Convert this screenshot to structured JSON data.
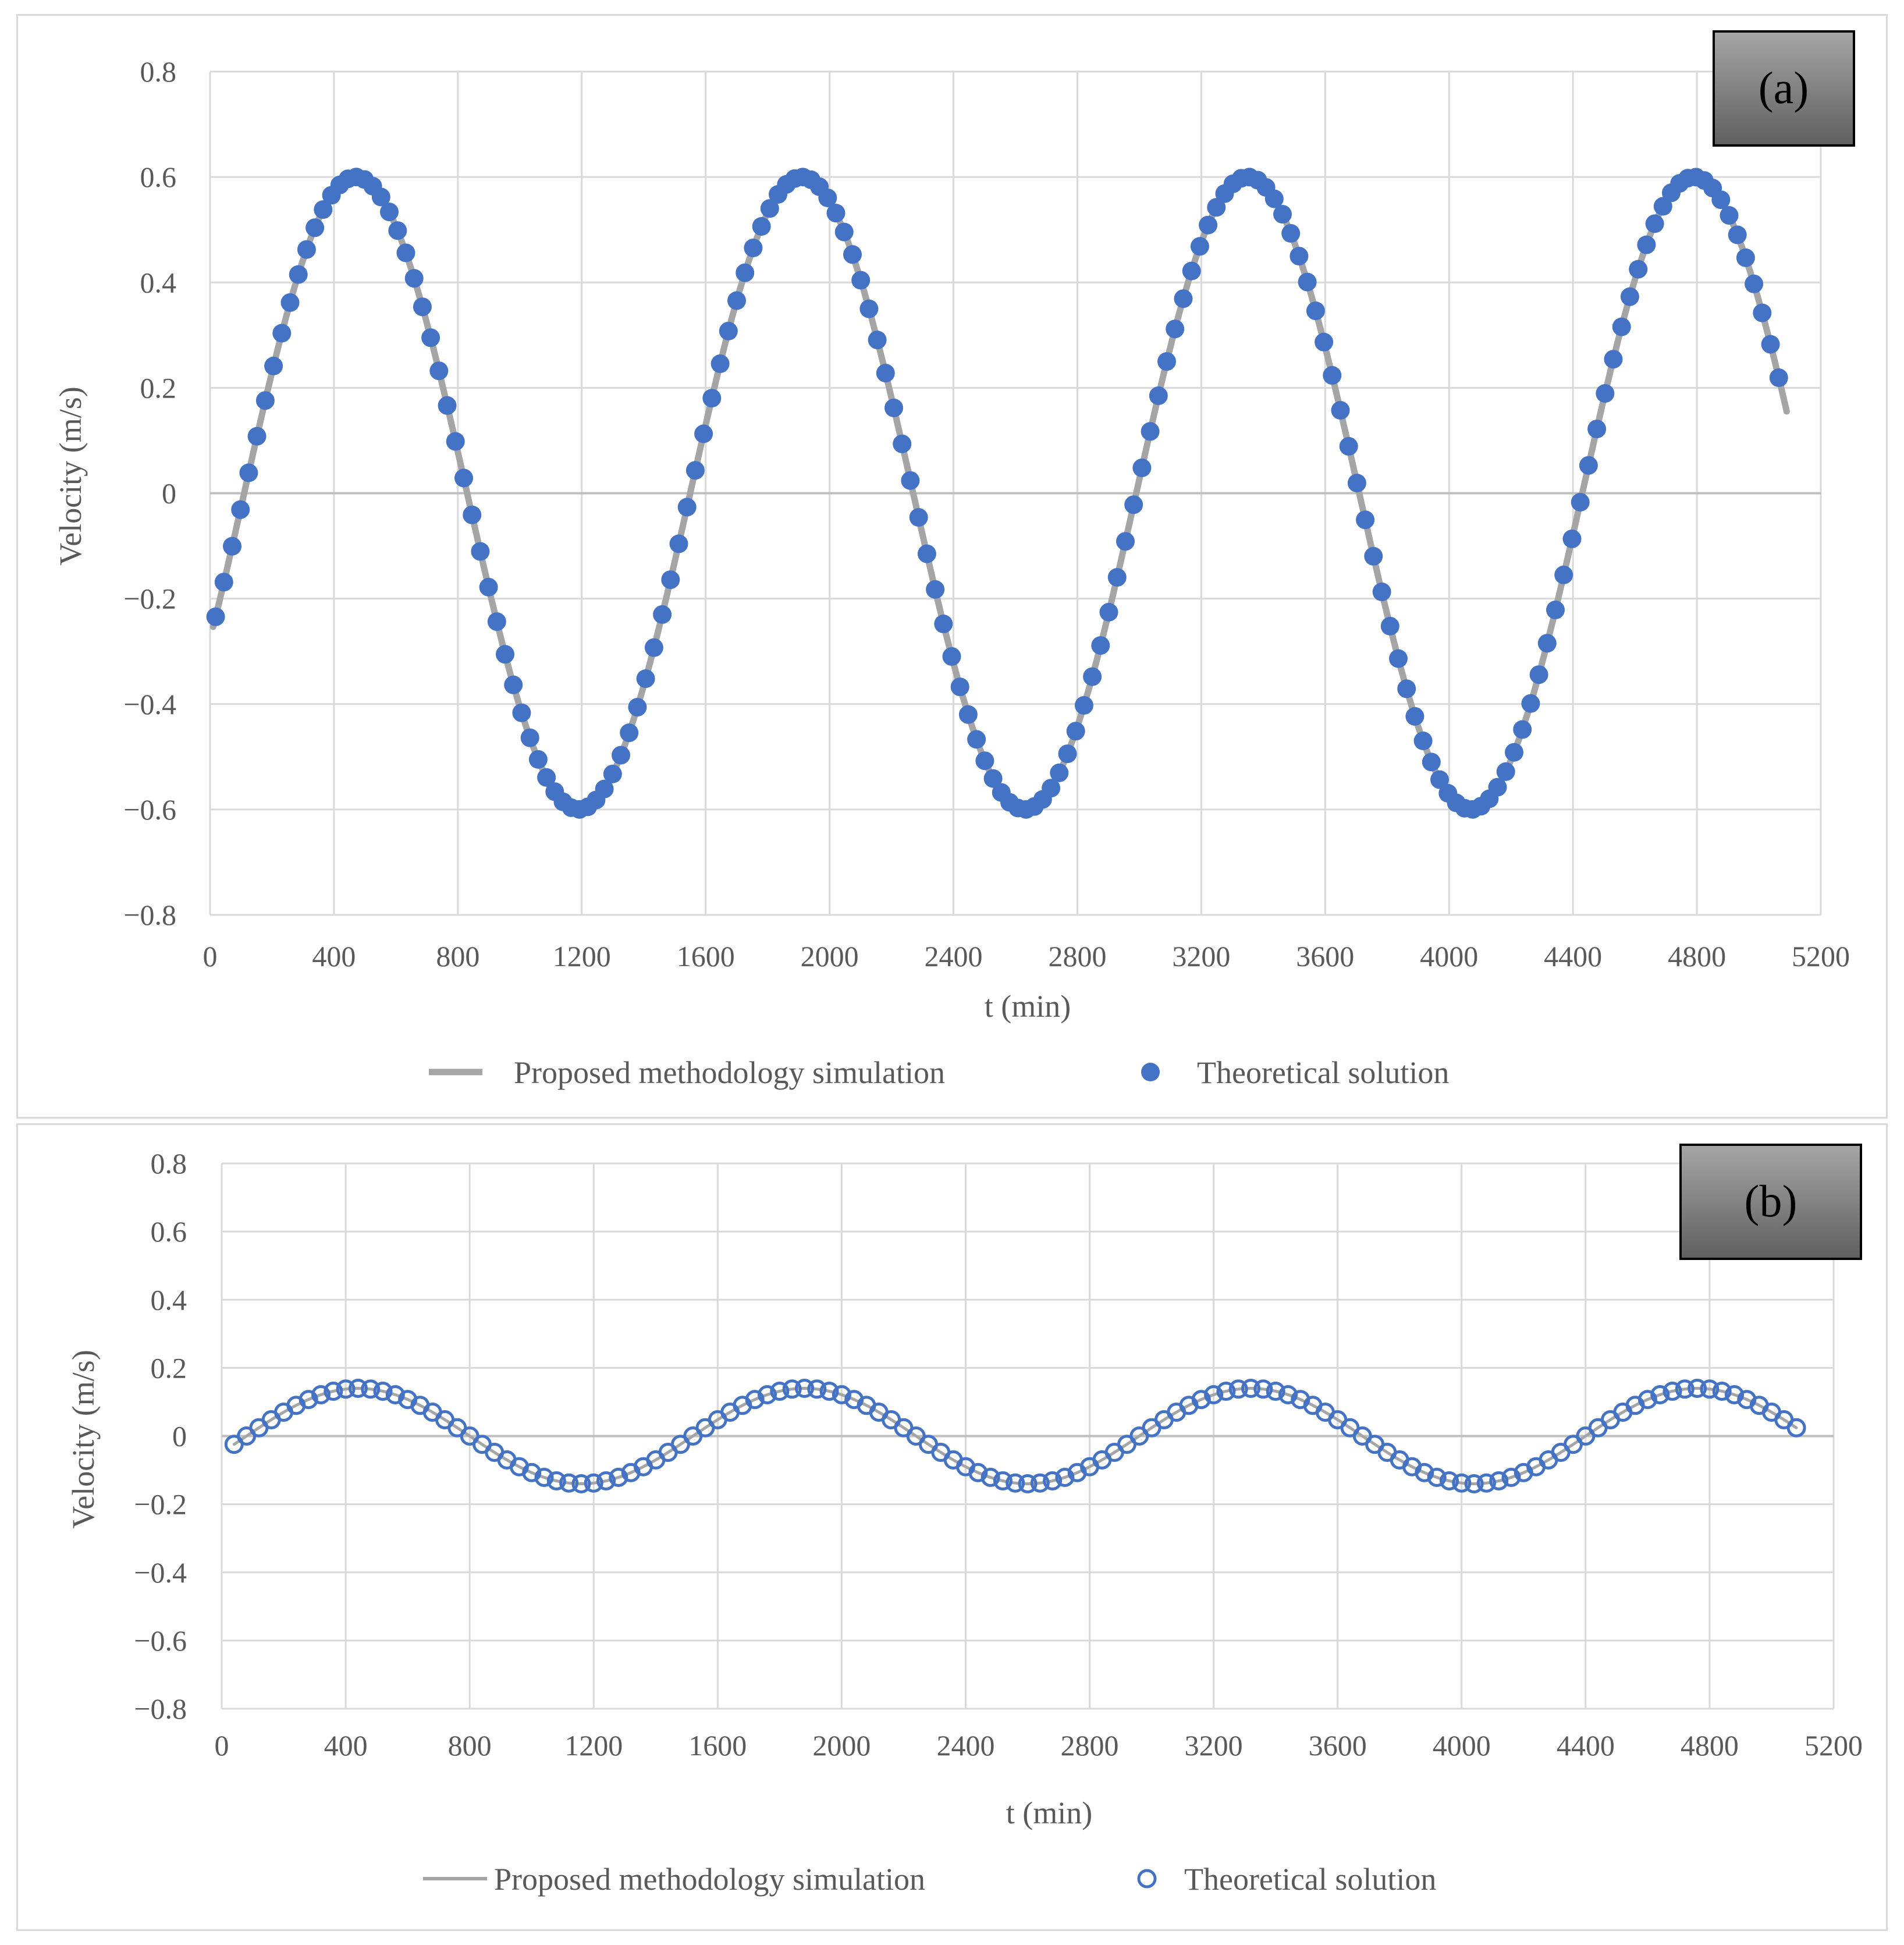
{
  "chart_data": [
    {
      "id": "a",
      "type": "line",
      "panel_label": "(a)",
      "xlabel": "t (min)",
      "ylabel": "Velocity (m/s)",
      "xlim": [
        0,
        5200
      ],
      "ylim": [
        -0.8,
        0.8
      ],
      "x_ticks": [
        "0",
        "400",
        "800",
        "1200",
        "1600",
        "2000",
        "2400",
        "2800",
        "3200",
        "3600",
        "4000",
        "4400",
        "4800",
        "5200"
      ],
      "y_ticks": [
        "0.8",
        "0.6",
        "0.4",
        "0.2",
        "0",
        "−0.2",
        "−0.4",
        "−0.6",
        "−0.8"
      ],
      "grid": true,
      "legend_position": "bottom",
      "series": [
        {
          "name": "Proposed methodology simulation",
          "style": "solid-line",
          "color": "#a5a5a5"
        },
        {
          "name": "Theoretical solution",
          "style": "filled-markers",
          "color": "#4472c4"
        }
      ],
      "signal": {
        "amplitude": 0.6,
        "period_min": 1440,
        "peak_times_min": [
          470,
          1910,
          3350,
          4790
        ],
        "t_start_min": 10,
        "t_end_min": 5090,
        "marker_spacing_min": 26.7
      }
    },
    {
      "id": "b",
      "type": "line",
      "panel_label": "(b)",
      "xlabel": "t (min)",
      "ylabel": "Velocity (m/s)",
      "xlim": [
        0,
        5200
      ],
      "ylim": [
        -0.8,
        0.8
      ],
      "x_ticks": [
        "0",
        "400",
        "800",
        "1200",
        "1600",
        "2000",
        "2400",
        "2800",
        "3200",
        "3600",
        "4000",
        "4400",
        "4800",
        "5200"
      ],
      "y_ticks": [
        "0.8",
        "0.6",
        "0.4",
        "0.2",
        "0",
        "−0.2",
        "−0.4",
        "−0.6",
        "−0.8"
      ],
      "grid": true,
      "legend_position": "bottom",
      "series": [
        {
          "name": "Proposed methodology simulation",
          "style": "solid-line",
          "color": "#a5a5a5"
        },
        {
          "name": "Theoretical solution",
          "style": "hollow-markers",
          "color": "#4472c4"
        }
      ],
      "signal": {
        "amplitude": 0.14,
        "period_min": 1440,
        "peak_times_min": [
          440,
          1880,
          3320,
          4760
        ],
        "t_start_min": 40,
        "t_end_min": 5080,
        "marker_spacing_min": 40
      }
    }
  ]
}
